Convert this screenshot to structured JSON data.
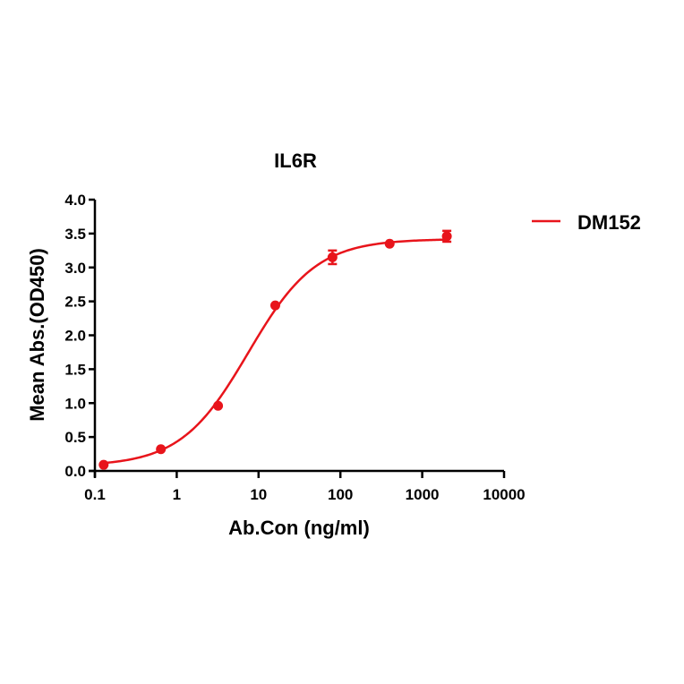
{
  "chart_data": {
    "type": "line",
    "title": "IL6R",
    "xlabel": "Ab.Con (ng/ml)",
    "ylabel": "Mean Abs.(OD450)",
    "xscale": "log",
    "xlim": [
      0.1,
      10000
    ],
    "ylim": [
      0,
      4.0
    ],
    "x_ticks": [
      "0.1",
      "1",
      "10",
      "100",
      "1000",
      "10000"
    ],
    "y_ticks": [
      "0.0",
      "0.5",
      "1.0",
      "1.5",
      "2.0",
      "2.5",
      "3.0",
      "3.5",
      "4.0"
    ],
    "grid": false,
    "legend_position": "right-top",
    "series": [
      {
        "name": "DM152",
        "color": "#e8141b",
        "x": [
          0.128,
          0.64,
          3.2,
          16,
          80,
          400,
          2000
        ],
        "values": [
          0.09,
          0.32,
          0.96,
          2.44,
          3.15,
          3.35,
          3.46
        ],
        "error": [
          0.01,
          0.02,
          0.02,
          0.03,
          0.1,
          0.03,
          0.08
        ],
        "fit": "4PL sigmoid",
        "fit_params": {
          "bottom": 0.07,
          "top": 3.42,
          "ec50": 7.5,
          "hill": 1.05
        }
      }
    ]
  },
  "legend": {
    "label": "DM152"
  }
}
